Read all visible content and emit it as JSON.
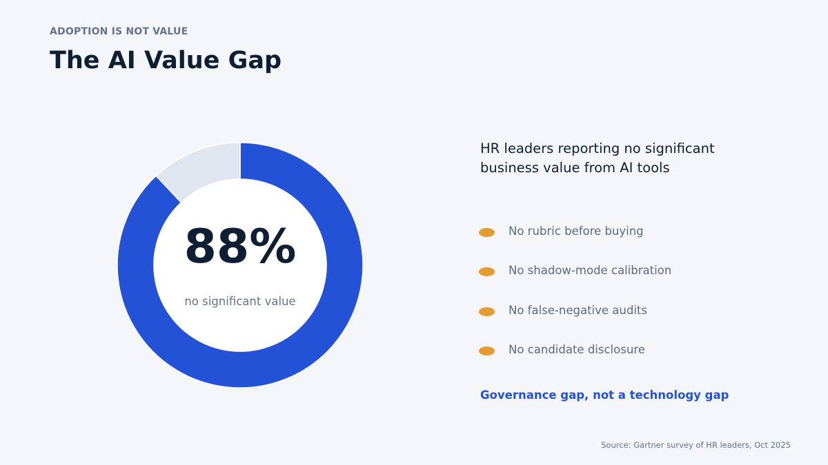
{
  "eyebrow": "ADOPTION IS NOT VALUE",
  "title": "The AI Value Gap",
  "chart_data": {
    "type": "pie",
    "style": "donut",
    "slices": [
      {
        "label": "no significant value",
        "value": 88,
        "color": "#2452d6"
      },
      {
        "label": "",
        "value": 12,
        "color": "#dfe6ef"
      }
    ],
    "center_value": "88%",
    "center_label": "no significant value"
  },
  "panel": {
    "heading": "HR leaders reporting no significant business value from AI tools",
    "items": [
      {
        "label": "No rubric before buying"
      },
      {
        "label": "No shadow-mode calibration"
      },
      {
        "label": "No false-negative audits"
      },
      {
        "label": "No candidate disclosure"
      }
    ],
    "bullet_color": "#e49b31",
    "callout": "Governance gap, not a technology gap"
  },
  "source": "Source: Gartner survey of HR leaders, Oct 2025"
}
